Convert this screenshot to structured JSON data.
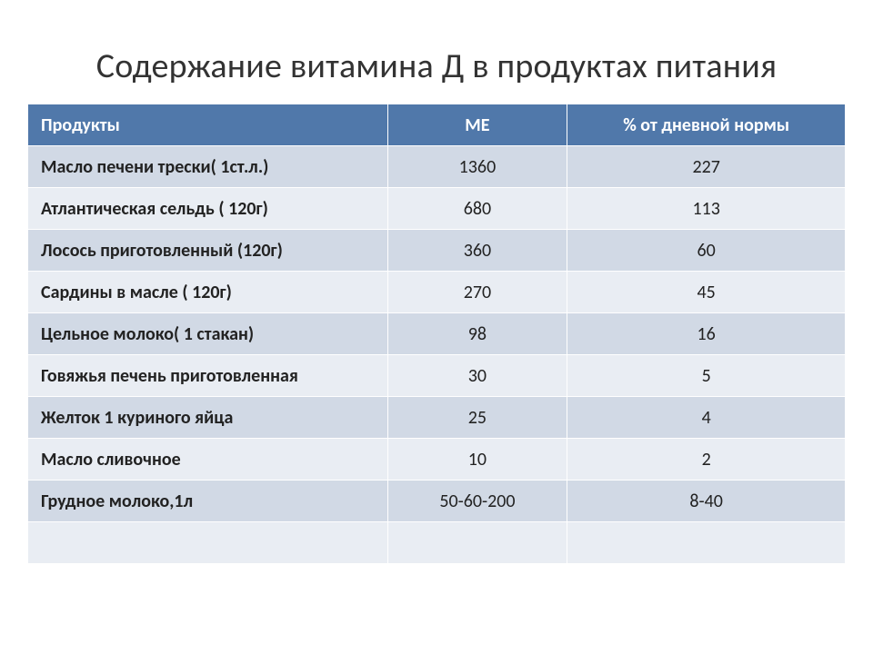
{
  "title": "Содержание витамина Д в продуктах питания",
  "table": {
    "type": "table",
    "header_bg": "#5078aa",
    "header_fg": "#ffffff",
    "band_colors": [
      "#d1d9e5",
      "#e9edf3"
    ],
    "border_color": "#ffffff",
    "font_family": "Calibri",
    "header_fontsize": 20,
    "cell_fontsize": 20,
    "columns": [
      {
        "label": "Продукты",
        "align": "left",
        "width_pct": 44
      },
      {
        "label": "МЕ",
        "align": "center",
        "width_pct": 22
      },
      {
        "label": "% от дневной нормы",
        "align": "center",
        "width_pct": 34
      }
    ],
    "rows": [
      {
        "product": "Масло печени трески( 1ст.л.)",
        "me": "1360",
        "pct": "227"
      },
      {
        "product": "Атлантическая сельдь ( 120г)",
        "me": "680",
        "pct": "113"
      },
      {
        "product": "Лосось приготовленный (120г)",
        "me": "360",
        "pct": "60"
      },
      {
        "product": "Сардины в масле ( 120г)",
        "me": "270",
        "pct": "45"
      },
      {
        "product": "Цельное молоко( 1 стакан)",
        "me": "98",
        "pct": "16"
      },
      {
        "product": "Говяжья печень приготовленная",
        "me": "30",
        "pct": "5"
      },
      {
        "product": "Желток 1 куриного яйца",
        "me": "25",
        "pct": "4"
      },
      {
        "product": "Масло сливочное",
        "me": "10",
        "pct": "2"
      },
      {
        "product": "Грудное молоко,1л",
        "me": "50-60-200",
        "pct": "8-40"
      },
      {
        "product": "",
        "me": "",
        "pct": ""
      }
    ]
  }
}
